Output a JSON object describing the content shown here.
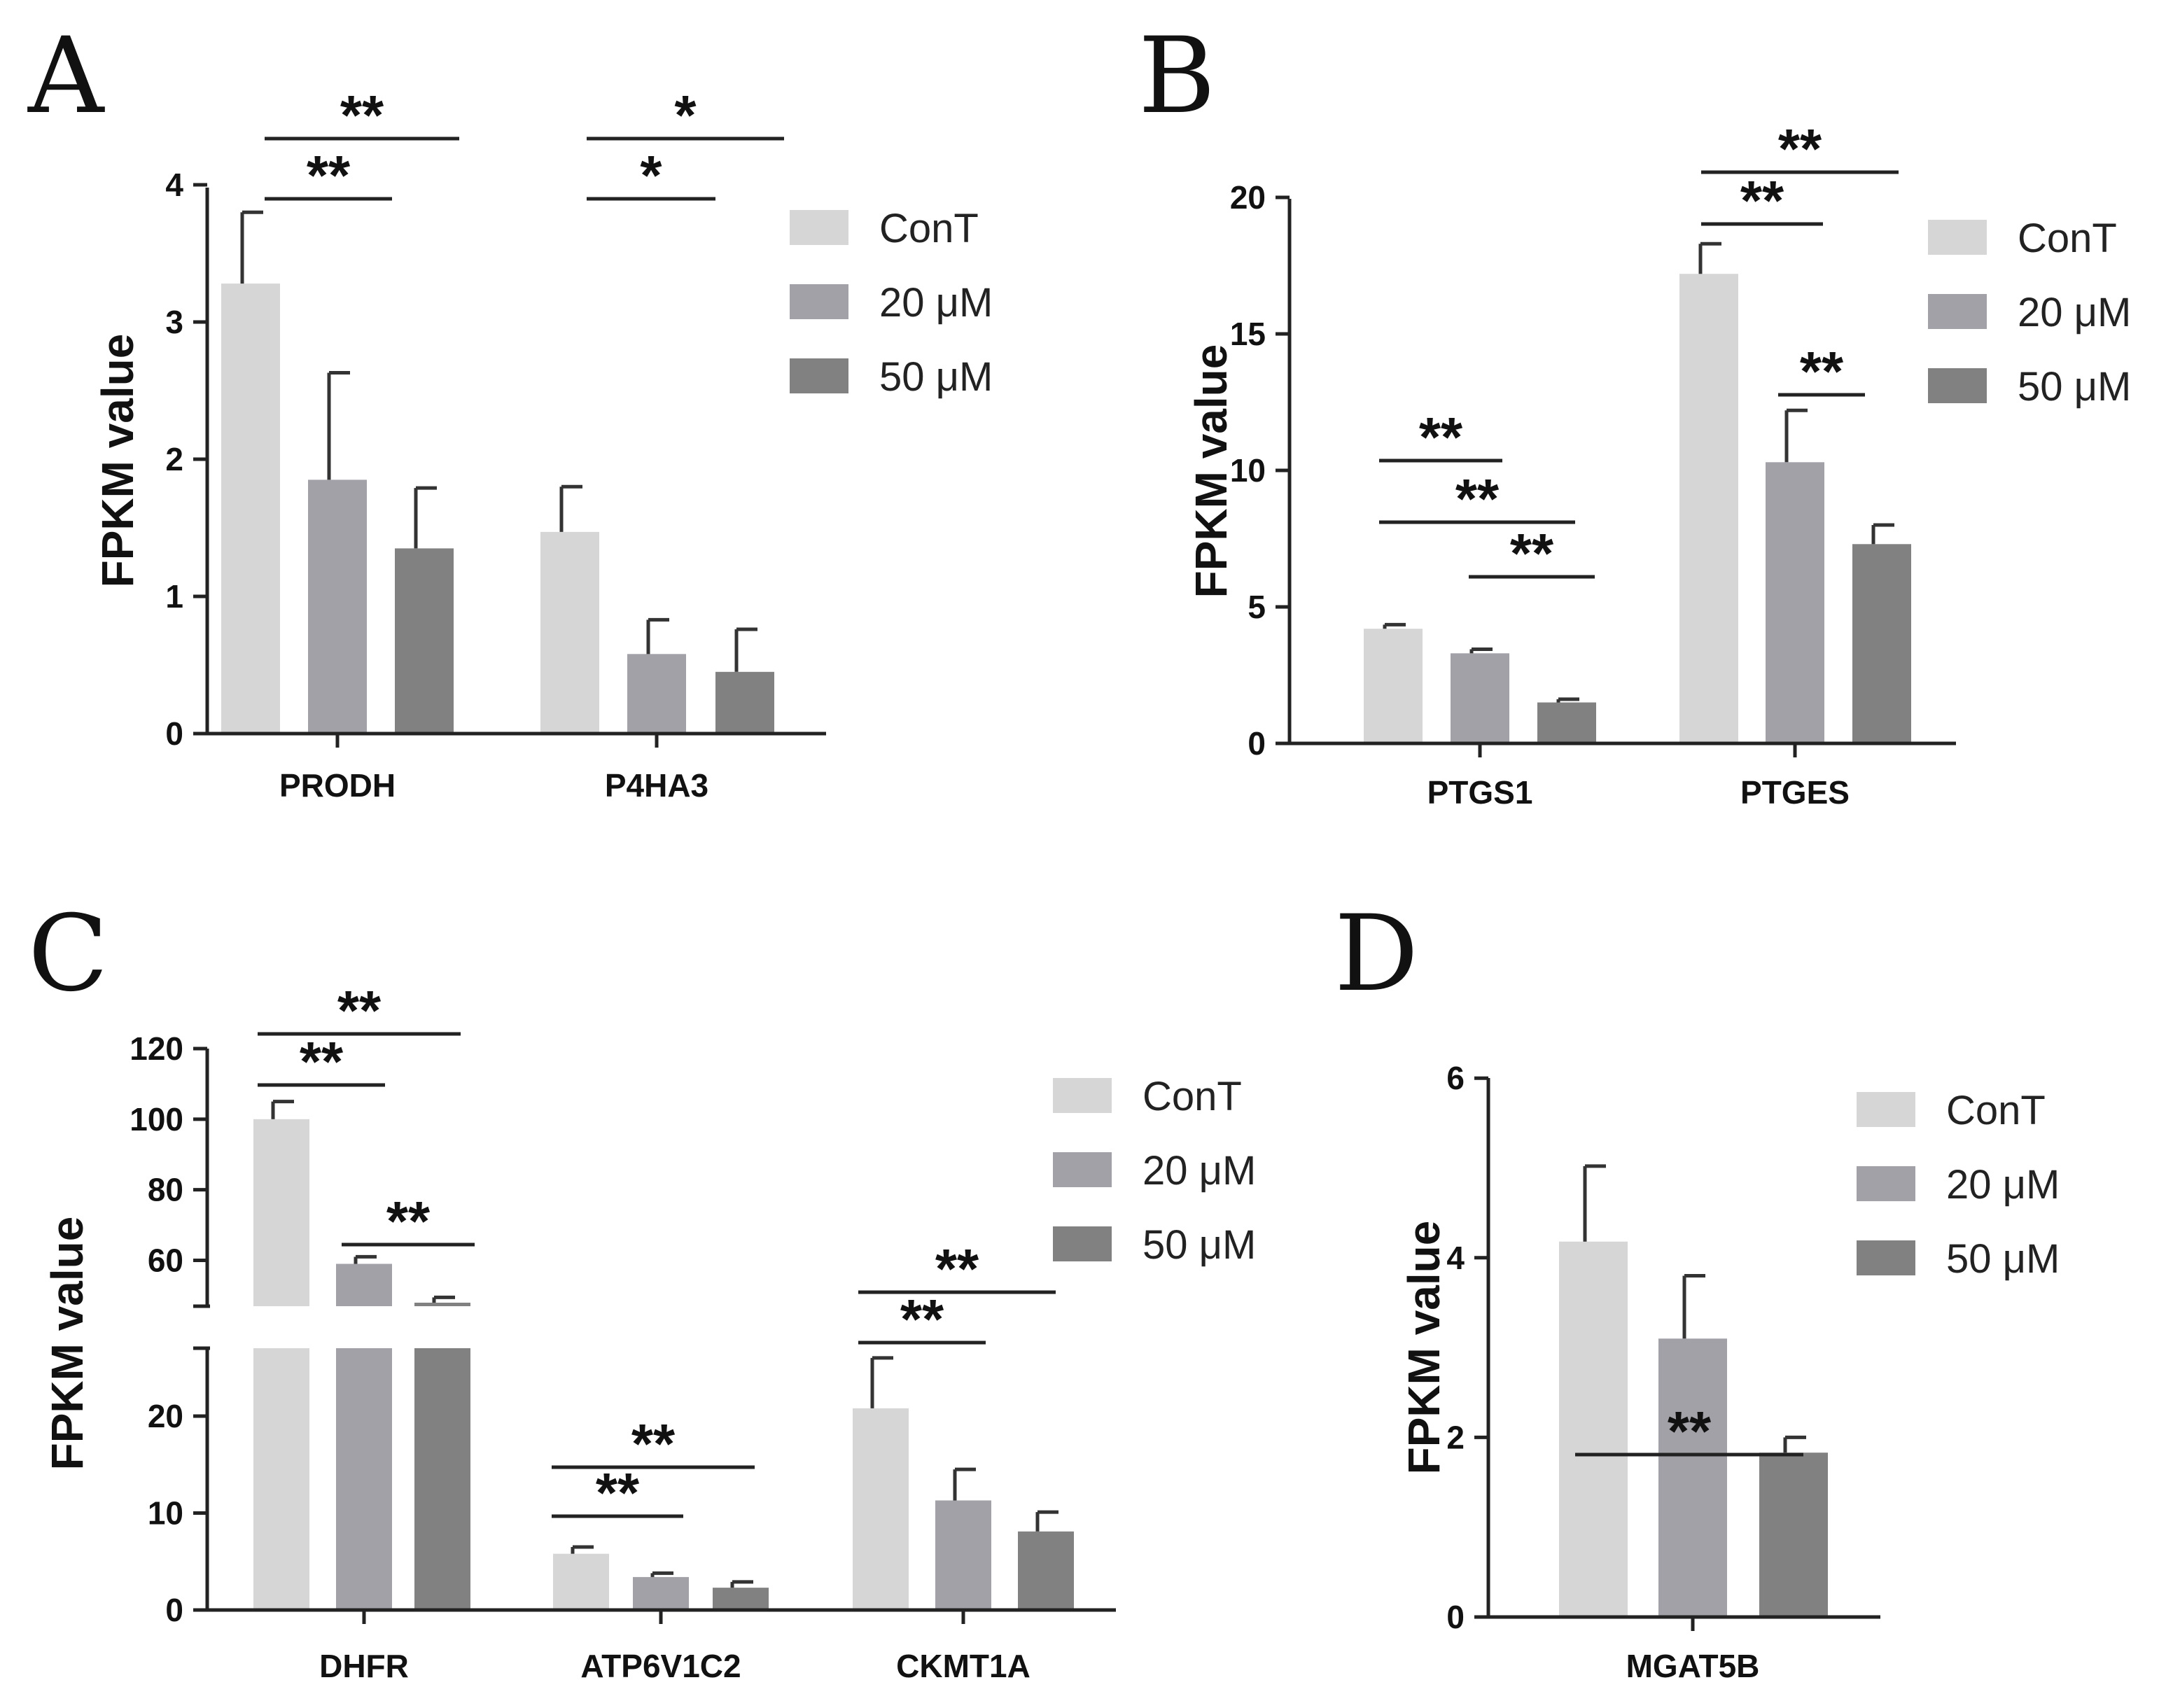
{
  "figure": {
    "colors": {
      "ConT": "#d6d6d6",
      "20 μM": "#a1a1a7",
      "50 μM": "#818181"
    },
    "legend": [
      "ConT",
      "20 μM",
      "50 μM"
    ]
  },
  "chart_data": [
    {
      "panel": "A",
      "type": "bar",
      "ylabel": "FPKM value",
      "ylim": [
        0,
        4
      ],
      "yticks": [
        0,
        1,
        2,
        3,
        4
      ],
      "categories": [
        "PRODH",
        "P4HA3"
      ],
      "series": [
        {
          "name": "ConT",
          "values": [
            3.28,
            1.47
          ],
          "errors": [
            0.52,
            0.33
          ]
        },
        {
          "name": "20 μM",
          "values": [
            1.85,
            0.58
          ],
          "errors": [
            0.78,
            0.25
          ]
        },
        {
          "name": "50 μM",
          "values": [
            1.35,
            0.45
          ],
          "errors": [
            0.44,
            0.31
          ]
        }
      ],
      "significance": [
        {
          "category": "PRODH",
          "from": "ConT",
          "to": "50 μM",
          "label": "**",
          "level": 1
        },
        {
          "category": "PRODH",
          "from": "ConT",
          "to": "20 μM",
          "label": "**",
          "level": 0
        },
        {
          "category": "P4HA3",
          "from": "ConT",
          "to": "50 μM",
          "label": "*",
          "level": 1
        },
        {
          "category": "P4HA3",
          "from": "ConT",
          "to": "20 μM",
          "label": "*",
          "level": 0
        }
      ]
    },
    {
      "panel": "B",
      "type": "bar",
      "ylabel": "FPKM value",
      "ylim": [
        0,
        20
      ],
      "yticks": [
        0,
        5,
        10,
        15,
        20
      ],
      "categories": [
        "PTGS1",
        "PTGES"
      ],
      "series": [
        {
          "name": "ConT",
          "values": [
            4.2,
            17.2
          ],
          "errors": [
            0.15,
            1.1
          ]
        },
        {
          "name": "20 μM",
          "values": [
            3.3,
            10.3
          ],
          "errors": [
            0.15,
            1.9
          ]
        },
        {
          "name": "50 μM",
          "values": [
            1.5,
            7.3
          ],
          "errors": [
            0.12,
            0.7
          ]
        }
      ],
      "significance": [
        {
          "category": "PTGS1",
          "from": "ConT",
          "to": "50 μM",
          "label": "**",
          "level": 2
        },
        {
          "category": "PTGS1",
          "from": "ConT",
          "to": "20 μM",
          "label": "**",
          "level": 1
        },
        {
          "category": "PTGS1",
          "from": "20 μM",
          "to": "50 μM",
          "label": "**",
          "level": 0
        },
        {
          "category": "PTGES",
          "from": "ConT",
          "to": "50 μM",
          "label": "**",
          "level": 1
        },
        {
          "category": "PTGES",
          "from": "ConT",
          "to": "20 μM",
          "label": "**",
          "level": 0
        },
        {
          "category": "PTGES",
          "from": "20 μM",
          "to": "50 μM",
          "label": "**",
          "level": -1
        }
      ]
    },
    {
      "panel": "C",
      "type": "bar",
      "ylabel": "FPKM value",
      "broken_axis": {
        "lower": [
          0,
          27
        ],
        "upper": [
          47,
          120
        ]
      },
      "yticks_lower": [
        0,
        10,
        20
      ],
      "yticks_upper": [
        60,
        80,
        100,
        120
      ],
      "categories": [
        "DHFR",
        "ATP6V1C2",
        "CKMT1A"
      ],
      "series": [
        {
          "name": "ConT",
          "values": [
            100,
            5.8,
            20.8
          ],
          "errors": [
            5,
            0.7,
            5.2
          ]
        },
        {
          "name": "20 μM",
          "values": [
            59,
            3.4,
            11.3
          ],
          "errors": [
            2,
            0.4,
            3.2
          ]
        },
        {
          "name": "50 μM",
          "values": [
            48,
            2.3,
            8.1
          ],
          "errors": [
            1.5,
            0.6,
            2.0
          ]
        }
      ],
      "significance": [
        {
          "category": "DHFR",
          "from": "ConT",
          "to": "50 μM",
          "label": "**",
          "level": 1
        },
        {
          "category": "DHFR",
          "from": "ConT",
          "to": "20 μM",
          "label": "**",
          "level": 0
        },
        {
          "category": "DHFR",
          "from": "20 μM",
          "to": "50 μM",
          "label": "**",
          "level": -1
        },
        {
          "category": "ATP6V1C2",
          "from": "ConT",
          "to": "50 μM",
          "label": "**",
          "level": 1
        },
        {
          "category": "ATP6V1C2",
          "from": "ConT",
          "to": "20 μM",
          "label": "**",
          "level": 0
        },
        {
          "category": "CKMT1A",
          "from": "ConT",
          "to": "50 μM",
          "label": "**",
          "level": 1
        },
        {
          "category": "CKMT1A",
          "from": "ConT",
          "to": "20 μM",
          "label": "**",
          "level": 0
        }
      ]
    },
    {
      "panel": "D",
      "type": "bar",
      "ylabel": "FPKM value",
      "ylim": [
        0,
        6
      ],
      "yticks": [
        0,
        2,
        4,
        6
      ],
      "categories": [
        "MGAT5B"
      ],
      "series": [
        {
          "name": "ConT",
          "values": [
            4.18
          ],
          "errors": [
            0.84
          ]
        },
        {
          "name": "20 μM",
          "values": [
            3.1
          ],
          "errors": [
            0.7
          ]
        },
        {
          "name": "50 μM",
          "values": [
            1.83
          ],
          "errors": [
            0.17
          ]
        }
      ],
      "significance": [
        {
          "category": "MGAT5B",
          "from": "ConT",
          "to": "50 μM",
          "label": "**",
          "level": 0
        }
      ]
    }
  ]
}
